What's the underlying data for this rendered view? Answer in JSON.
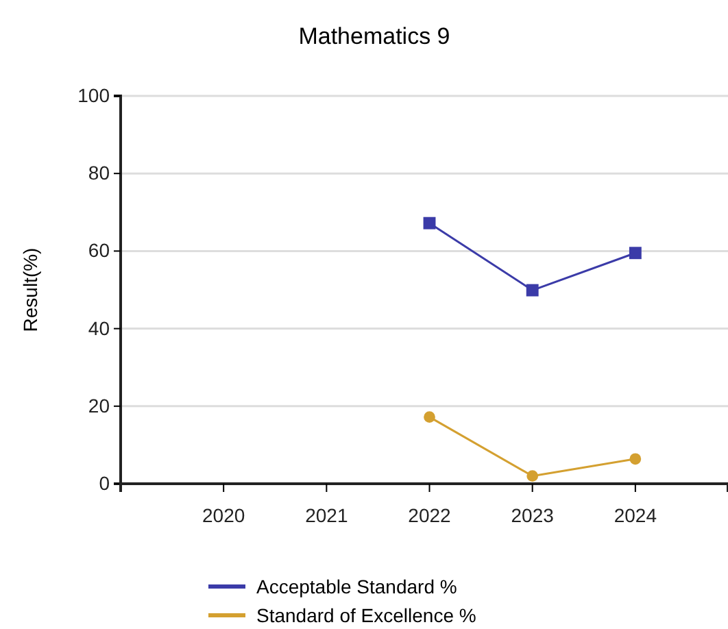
{
  "chart_data": {
    "type": "line",
    "title": "Mathematics 9",
    "ylabel": "Result(%)",
    "categories": [
      "2020",
      "2021",
      "2022",
      "2023",
      "2024"
    ],
    "series": [
      {
        "name": "Acceptable Standard %",
        "color": "#3b3ba8",
        "marker": "square",
        "values": [
          null,
          null,
          67.2,
          49.9,
          59.5
        ]
      },
      {
        "name": "Standard of Excellence %",
        "color": "#d4a030",
        "marker": "circle",
        "values": [
          null,
          null,
          17.2,
          2.0,
          6.4
        ]
      }
    ],
    "ylim": [
      0,
      100
    ],
    "yticks": [
      0,
      20,
      40,
      60,
      80,
      100
    ],
    "grid": "y",
    "legend": "bottom"
  }
}
